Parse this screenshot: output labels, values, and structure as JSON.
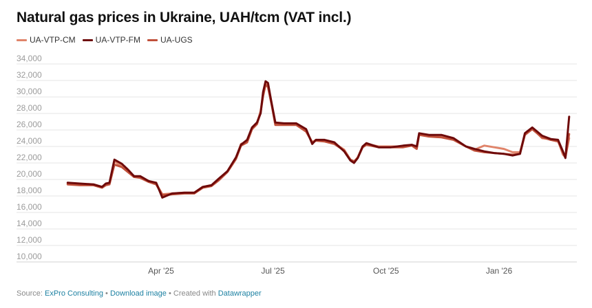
{
  "title": "Natural gas prices in Ukraine, UAH/tcm (VAT incl.)",
  "legend": [
    {
      "label": "UA-VTP-CM",
      "color": "#e0846a"
    },
    {
      "label": "UA-VTP-FM",
      "color": "#6e0a0a"
    },
    {
      "label": "UA-UGS",
      "color": "#c0503a"
    }
  ],
  "footer": {
    "source_label": "Source:",
    "source_link": "ExPro Consulting",
    "sep1": "•",
    "download_link": "Download image",
    "sep2": "•",
    "created_label": "Created with",
    "datawrapper_link": "Datawrapper"
  },
  "chart_data": {
    "type": "line",
    "title": "Natural gas prices in Ukraine, UAH/tcm (VAT incl.)",
    "xlabel": "",
    "ylabel": "UAH/tcm",
    "ylim": [
      10000,
      34000
    ],
    "yticks": [
      10000,
      12000,
      14000,
      16000,
      18000,
      20000,
      22000,
      24000,
      26000,
      28000,
      30000,
      32000,
      34000
    ],
    "ytick_labels": [
      "10,000",
      "12,000",
      "14,000",
      "16,000",
      "18,000",
      "20,000",
      "22,000",
      "24,000",
      "26,000",
      "28,000",
      "30,000",
      "32,000",
      "34,000"
    ],
    "xtick_labels": [
      "Apr '25",
      "Jul '25",
      "Oct '25",
      "Jan '26"
    ],
    "grid": true,
    "legend_position": "top-left",
    "x": [
      "2025-01-15",
      "2025-01-25",
      "2025-02-05",
      "2025-02-12",
      "2025-02-15",
      "2025-02-18",
      "2025-02-22",
      "2025-02-28",
      "2025-03-05",
      "2025-03-10",
      "2025-03-15",
      "2025-03-22",
      "2025-03-28",
      "2025-04-02",
      "2025-04-10",
      "2025-04-20",
      "2025-04-28",
      "2025-05-05",
      "2025-05-12",
      "2025-05-18",
      "2025-05-25",
      "2025-06-01",
      "2025-06-05",
      "2025-06-10",
      "2025-06-14",
      "2025-06-18",
      "2025-06-21",
      "2025-06-23",
      "2025-06-25",
      "2025-06-27",
      "2025-06-30",
      "2025-07-03",
      "2025-07-10",
      "2025-07-20",
      "2025-07-28",
      "2025-08-02",
      "2025-08-05",
      "2025-08-12",
      "2025-08-20",
      "2025-08-28",
      "2025-09-02",
      "2025-09-05",
      "2025-09-08",
      "2025-09-12",
      "2025-09-15",
      "2025-09-25",
      "2025-10-05",
      "2025-10-15",
      "2025-10-22",
      "2025-10-26",
      "2025-10-28",
      "2025-11-05",
      "2025-11-15",
      "2025-11-25",
      "2025-12-05",
      "2025-12-12",
      "2025-12-20",
      "2025-12-28",
      "2026-01-05",
      "2026-01-12",
      "2026-01-18",
      "2026-01-22",
      "2026-01-28",
      "2026-02-05",
      "2026-02-12",
      "2026-02-18",
      "2026-02-22",
      "2026-02-24",
      "2026-02-27"
    ],
    "series": [
      {
        "name": "UA-VTP-CM",
        "values": [
          19500,
          19400,
          19400,
          19100,
          19400,
          19500,
          22200,
          21600,
          21000,
          20400,
          20300,
          19800,
          19500,
          18200,
          18300,
          18400,
          18400,
          19100,
          19300,
          20000,
          21000,
          22600,
          24300,
          24600,
          26200,
          26800,
          28300,
          30300,
          31600,
          31400,
          29200,
          26800,
          26700,
          26700,
          25900,
          24500,
          24800,
          24700,
          24400,
          23600,
          22400,
          22100,
          22700,
          24000,
          24300,
          24000,
          24000,
          24000,
          24200,
          23800,
          25500,
          25300,
          25200,
          24900,
          24000,
          23600,
          24100,
          23900,
          23700,
          23300,
          23300,
          25500,
          26200,
          25000,
          24900,
          24700,
          23000,
          22700,
          25000
        ]
      },
      {
        "name": "UA-VTP-FM",
        "values": [
          19600,
          19500,
          19400,
          19100,
          19500,
          19600,
          22400,
          21900,
          21200,
          20400,
          20400,
          19800,
          19600,
          17800,
          18300,
          18400,
          18400,
          19100,
          19300,
          20100,
          21000,
          22700,
          24200,
          24800,
          26300,
          26900,
          28000,
          30600,
          31900,
          31700,
          29200,
          26900,
          26800,
          26800,
          26100,
          24300,
          24800,
          24800,
          24500,
          23400,
          22300,
          22000,
          22600,
          24000,
          24400,
          23900,
          23900,
          24100,
          24200,
          24000,
          25600,
          25400,
          25400,
          25000,
          24000,
          23700,
          23400,
          23200,
          23100,
          22900,
          23100,
          25600,
          26300,
          25300,
          24900,
          24800,
          23400,
          22600,
          27600
        ]
      },
      {
        "name": "UA-UGS",
        "values": [
          19400,
          19300,
          19300,
          19000,
          19300,
          19400,
          21800,
          21500,
          20900,
          20300,
          20200,
          19700,
          19400,
          18100,
          18200,
          18300,
          18300,
          19000,
          19200,
          19900,
          20900,
          22500,
          24100,
          24500,
          26100,
          26700,
          28100,
          30100,
          31500,
          31200,
          29000,
          26600,
          26600,
          26600,
          25800,
          24500,
          24700,
          24600,
          24300,
          23500,
          22400,
          22200,
          22600,
          23900,
          24200,
          23900,
          23900,
          23900,
          24100,
          23700,
          25400,
          25200,
          25100,
          24800,
          24000,
          23500,
          23300,
          23200,
          23100,
          23000,
          23100,
          25400,
          26100,
          25100,
          24800,
          24600,
          23300,
          22700,
          25500
        ]
      }
    ]
  }
}
